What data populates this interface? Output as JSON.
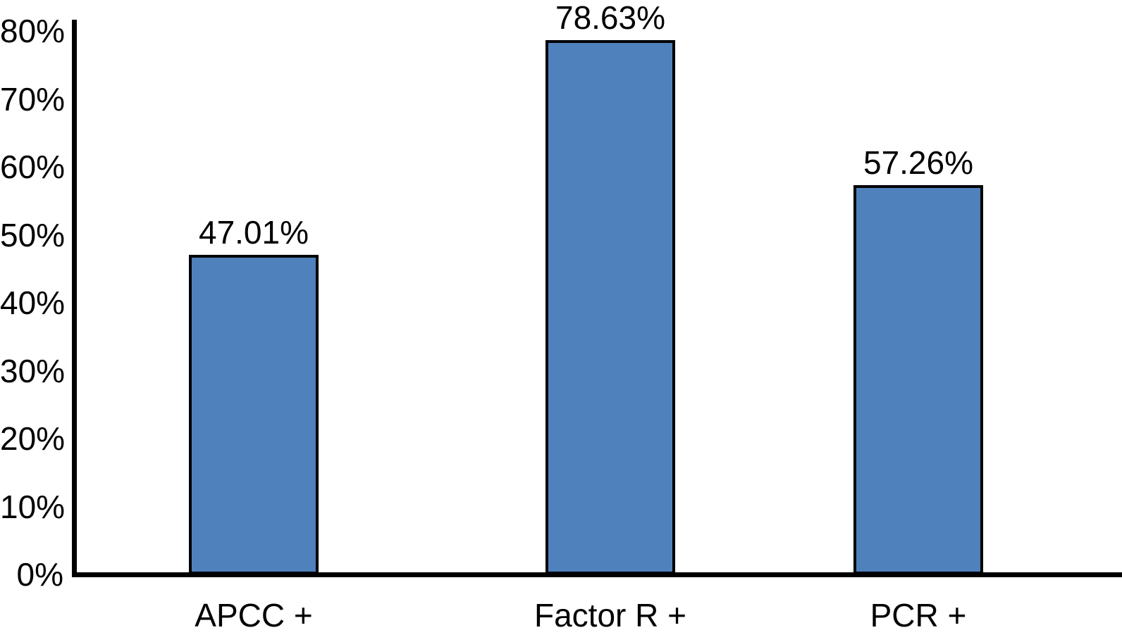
{
  "figure": {
    "background_color": "#FFFFFF",
    "text_color": "#000000"
  },
  "chart_data": {
    "type": "bar",
    "title": "",
    "xlabel": "",
    "ylabel": "",
    "categories": [
      "APCC +",
      "Factor R +",
      "PCR +"
    ],
    "values": [
      47.01,
      78.63,
      57.26
    ],
    "value_labels": [
      "47.01%",
      "78.63%",
      "57.26%"
    ],
    "ylim": [
      0,
      80
    ],
    "ytick_values": [
      0,
      10,
      20,
      30,
      40,
      50,
      60,
      70,
      80
    ],
    "ytick_labels": [
      "0%",
      "10%",
      "20%",
      "30%",
      "40%",
      "50%",
      "60%",
      "70%",
      "80%"
    ],
    "grid": false,
    "legend": null,
    "bar_fill_color": "#4F81BD",
    "bar_border_color": "#000000",
    "axis_color": "#000000"
  }
}
